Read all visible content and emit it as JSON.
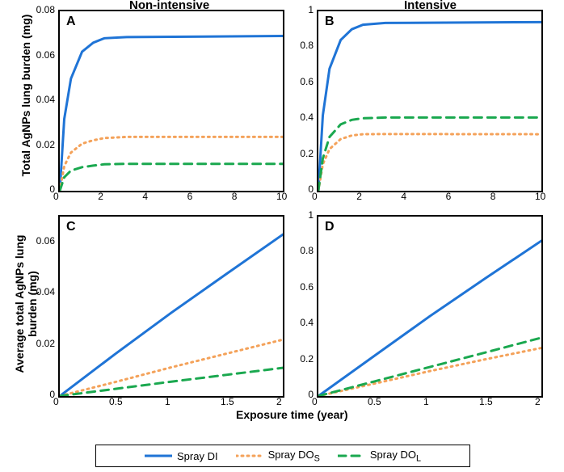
{
  "columns": {
    "left_title": "Non-intensive",
    "right_title": "Intensive"
  },
  "ylabels": {
    "top": "Total AgNPs lung burden (mg)",
    "bottom": "Average total AgNPs lung burden (mg)"
  },
  "xlabel": "Exposure time (year)",
  "panel_labels": {
    "A": "A",
    "B": "B",
    "C": "C",
    "D": "D"
  },
  "series": {
    "di": {
      "color": "#1f74d6",
      "width": 3,
      "dash": "",
      "label": "Spray DI"
    },
    "dos": {
      "color": "#f4a25a",
      "width": 3,
      "dash": "2 5",
      "label": "Spray DOS",
      "label_sub": "S"
    },
    "dol": {
      "color": "#1aa84f",
      "width": 3,
      "dash": "10 7",
      "label": "Spray DOL",
      "label_sub": "L"
    }
  },
  "A": {
    "xlim": [
      0,
      10
    ],
    "ylim": [
      0,
      0.08
    ],
    "xticks": [
      0,
      2,
      4,
      6,
      8,
      10
    ],
    "yticks": [
      0,
      0.02,
      0.04,
      0.06,
      0.08
    ],
    "di": [
      [
        0,
        0
      ],
      [
        0.2,
        0.032
      ],
      [
        0.5,
        0.05
      ],
      [
        1,
        0.062
      ],
      [
        1.5,
        0.066
      ],
      [
        2,
        0.068
      ],
      [
        3,
        0.0685
      ],
      [
        10,
        0.069
      ]
    ],
    "dos": [
      [
        0,
        0
      ],
      [
        0.2,
        0.011
      ],
      [
        0.5,
        0.017
      ],
      [
        1,
        0.021
      ],
      [
        1.5,
        0.0225
      ],
      [
        2,
        0.0235
      ],
      [
        3,
        0.024
      ],
      [
        10,
        0.024
      ]
    ],
    "dol": [
      [
        0,
        0
      ],
      [
        0.2,
        0.006
      ],
      [
        0.5,
        0.009
      ],
      [
        1,
        0.0105
      ],
      [
        1.5,
        0.0112
      ],
      [
        2,
        0.0118
      ],
      [
        3,
        0.012
      ],
      [
        10,
        0.012
      ]
    ]
  },
  "B": {
    "xlim": [
      0,
      10
    ],
    "ylim": [
      0,
      1.0
    ],
    "xticks": [
      0,
      2,
      4,
      6,
      8,
      10
    ],
    "yticks": [
      0,
      0.2,
      0.4,
      0.6,
      0.8,
      1.0
    ],
    "di": [
      [
        0,
        0
      ],
      [
        0.2,
        0.42
      ],
      [
        0.5,
        0.68
      ],
      [
        1,
        0.84
      ],
      [
        1.5,
        0.9
      ],
      [
        2,
        0.925
      ],
      [
        3,
        0.935
      ],
      [
        10,
        0.94
      ]
    ],
    "dos": [
      [
        0,
        0
      ],
      [
        0.2,
        0.148
      ],
      [
        0.5,
        0.232
      ],
      [
        1,
        0.288
      ],
      [
        1.5,
        0.308
      ],
      [
        2,
        0.315
      ],
      [
        3,
        0.316
      ],
      [
        10,
        0.315
      ]
    ],
    "dol": [
      [
        0,
        0
      ],
      [
        0.2,
        0.18
      ],
      [
        0.5,
        0.3
      ],
      [
        1,
        0.37
      ],
      [
        1.5,
        0.395
      ],
      [
        2,
        0.404
      ],
      [
        3,
        0.408
      ],
      [
        10,
        0.408
      ]
    ]
  },
  "C": {
    "xlim": [
      0,
      2
    ],
    "ylim": [
      0,
      0.07
    ],
    "xticks": [
      0,
      0.5,
      1,
      1.5,
      2
    ],
    "yticks": [
      0,
      0.02,
      0.04,
      0.06
    ],
    "di": [
      [
        0,
        0
      ],
      [
        0.5,
        0.0165
      ],
      [
        1,
        0.0325
      ],
      [
        1.5,
        0.0478
      ],
      [
        2,
        0.063
      ]
    ],
    "dos": [
      [
        0,
        0
      ],
      [
        0.5,
        0.0055
      ],
      [
        1,
        0.0112
      ],
      [
        1.5,
        0.0166
      ],
      [
        2,
        0.022
      ]
    ],
    "dol": [
      [
        0,
        0
      ],
      [
        0.5,
        0.0028
      ],
      [
        1,
        0.0056
      ],
      [
        1.5,
        0.0083
      ],
      [
        2,
        0.011
      ]
    ]
  },
  "D": {
    "xlim": [
      0,
      2
    ],
    "ylim": [
      0,
      1.0
    ],
    "xticks": [
      0,
      0.5,
      1,
      1.5,
      2
    ],
    "yticks": [
      0,
      0.2,
      0.4,
      0.6,
      0.8,
      1.0
    ],
    "di": [
      [
        0,
        0
      ],
      [
        0.5,
        0.223
      ],
      [
        1,
        0.445
      ],
      [
        1.5,
        0.657
      ],
      [
        2,
        0.865
      ]
    ],
    "dos": [
      [
        0,
        0
      ],
      [
        0.5,
        0.069
      ],
      [
        1,
        0.139
      ],
      [
        1.5,
        0.205
      ],
      [
        2,
        0.268
      ]
    ],
    "dol": [
      [
        0,
        0
      ],
      [
        0.5,
        0.081
      ],
      [
        1,
        0.162
      ],
      [
        1.5,
        0.243
      ],
      [
        2,
        0.325
      ]
    ]
  },
  "style": {
    "axis_color": "#000",
    "background_color": "#ffffff",
    "tick_fontsize": 12,
    "label_fontsize": 14
  }
}
